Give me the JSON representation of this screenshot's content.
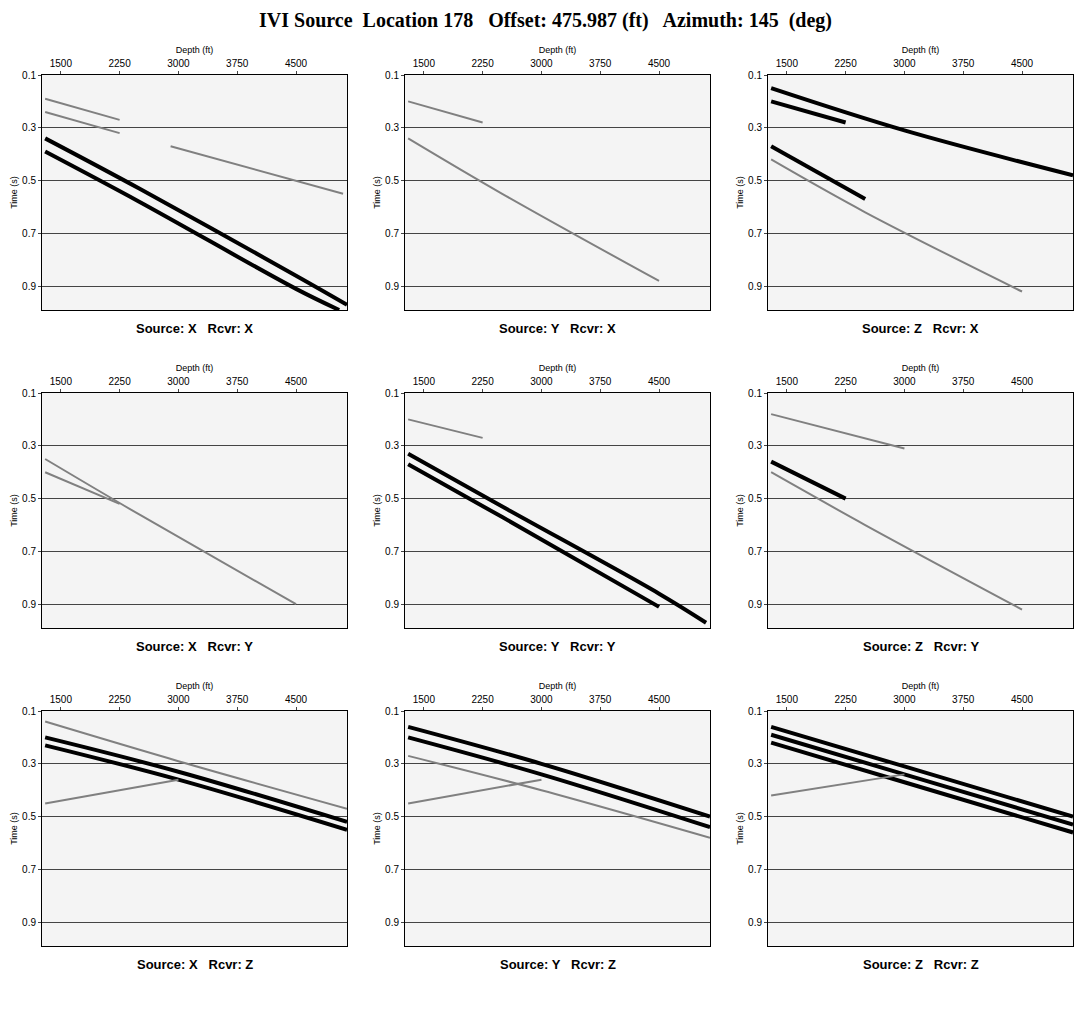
{
  "title": "IVI Source  Location 178   Offset: 475.987 (ft)   Azimuth: 145  (deg)",
  "chart_data": [
    {
      "type": "line",
      "title": "Source: X   Rcvr: X",
      "x_label": "Depth (ft)",
      "y_label": "Time (s)",
      "xlim": [
        1260,
        5150
      ],
      "ylim": [
        0.99,
        0.1
      ],
      "xticks": [
        1500,
        2250,
        3000,
        3750,
        4500
      ],
      "yticks": [
        0.1,
        0.3,
        0.5,
        0.7,
        0.9
      ],
      "grid": true,
      "tick_labels": true,
      "series": [
        {
          "color": "#000000",
          "x": [
            1300,
            2500,
            4500,
            5150
          ],
          "values": [
            0.34,
            0.53,
            0.86,
            0.97
          ]
        },
        {
          "color": "#000000",
          "x": [
            1300,
            2500,
            4500,
            5050
          ],
          "values": [
            0.39,
            0.58,
            0.91,
            0.99
          ]
        },
        {
          "color": "#808080",
          "x": [
            1300,
            2250
          ],
          "values": [
            0.19,
            0.27
          ]
        },
        {
          "color": "#808080",
          "x": [
            1300,
            2250
          ],
          "values": [
            0.24,
            0.32
          ]
        },
        {
          "color": "#808080",
          "x": [
            2900,
            5100
          ],
          "values": [
            0.37,
            0.55
          ]
        }
      ]
    },
    {
      "type": "line",
      "title": "Source: Y   Rcvr: X",
      "x_label": "Depth (ft)",
      "y_label": "Time (s)",
      "xlim": [
        1260,
        5150
      ],
      "ylim": [
        0.99,
        0.1
      ],
      "xticks": [
        1500,
        2250,
        3000,
        3750,
        4500
      ],
      "yticks": [
        0.1,
        0.3,
        0.5,
        0.7,
        0.9
      ],
      "grid": true,
      "tick_labels": true,
      "series": [
        {
          "color": "#808080",
          "x": [
            1300,
            2500,
            4500
          ],
          "values": [
            0.34,
            0.55,
            0.88
          ]
        },
        {
          "color": "#808080",
          "x": [
            1300,
            2250
          ],
          "values": [
            0.2,
            0.28
          ]
        }
      ]
    },
    {
      "type": "line",
      "title": "Source: Z   Rcvr: X",
      "x_label": "Depth (ft)",
      "y_label": "Time (s)",
      "xlim": [
        1260,
        5150
      ],
      "ylim": [
        0.99,
        0.1
      ],
      "xticks": [
        1500,
        2250,
        3000,
        3750,
        4500
      ],
      "yticks": [
        0.1,
        0.3,
        0.5,
        0.7,
        0.9
      ],
      "grid": true,
      "tick_labels": true,
      "series": [
        {
          "color": "#000000",
          "x": [
            1300,
            3000,
            5150
          ],
          "values": [
            0.15,
            0.31,
            0.48
          ]
        },
        {
          "color": "#000000",
          "x": [
            1300,
            2250
          ],
          "values": [
            0.2,
            0.28
          ]
        },
        {
          "color": "#000000",
          "x": [
            1300,
            2500
          ],
          "values": [
            0.37,
            0.57
          ]
        },
        {
          "color": "#808080",
          "x": [
            1300,
            2500,
            4500
          ],
          "values": [
            0.42,
            0.62,
            0.92
          ]
        }
      ]
    },
    {
      "type": "line",
      "title": "Source: X   Rcvr: Y",
      "x_label": "Depth (ft)",
      "y_label": "Time (s)",
      "xlim": [
        1260,
        5150
      ],
      "ylim": [
        0.99,
        0.1
      ],
      "xticks": [
        1500,
        2250,
        3000,
        3750,
        4500
      ],
      "yticks": [
        0.1,
        0.3,
        0.5,
        0.7,
        0.9
      ],
      "grid": true,
      "tick_labels": true,
      "series": [
        {
          "color": "#808080",
          "x": [
            1300,
            2500,
            4500
          ],
          "values": [
            0.35,
            0.56,
            0.9
          ]
        },
        {
          "color": "#808080",
          "x": [
            1300,
            2250
          ],
          "values": [
            0.4,
            0.52
          ]
        }
      ]
    },
    {
      "type": "line",
      "title": "Source: Y   Rcvr: Y",
      "x_label": "Depth (ft)",
      "y_label": "Time (s)",
      "xlim": [
        1260,
        5150
      ],
      "ylim": [
        0.99,
        0.1
      ],
      "xticks": [
        1500,
        2250,
        3000,
        3750,
        4500
      ],
      "yticks": [
        0.1,
        0.3,
        0.5,
        0.7,
        0.9
      ],
      "grid": true,
      "tick_labels": true,
      "series": [
        {
          "color": "#000000",
          "x": [
            1300,
            2500,
            4500,
            5100
          ],
          "values": [
            0.33,
            0.53,
            0.86,
            0.97
          ]
        },
        {
          "color": "#000000",
          "x": [
            1300,
            2500,
            4500
          ],
          "values": [
            0.37,
            0.57,
            0.91
          ]
        },
        {
          "color": "#808080",
          "x": [
            1300,
            2250
          ],
          "values": [
            0.2,
            0.27
          ]
        }
      ]
    },
    {
      "type": "line",
      "title": "Source: Z   Rcvr: Y",
      "x_label": "Depth (ft)",
      "y_label": "Time (s)",
      "xlim": [
        1260,
        5150
      ],
      "ylim": [
        0.99,
        0.1
      ],
      "xticks": [
        1500,
        2250,
        3000,
        3750,
        4500
      ],
      "yticks": [
        0.1,
        0.3,
        0.5,
        0.7,
        0.9
      ],
      "grid": true,
      "tick_labels": true,
      "series": [
        {
          "color": "#000000",
          "x": [
            1300,
            2250
          ],
          "values": [
            0.36,
            0.5
          ]
        },
        {
          "color": "#808080",
          "x": [
            1300,
            2500,
            4500
          ],
          "values": [
            0.4,
            0.6,
            0.92
          ]
        },
        {
          "color": "#808080",
          "x": [
            1300,
            3000
          ],
          "values": [
            0.18,
            0.31
          ]
        }
      ]
    },
    {
      "type": "line",
      "title": "Source: X   Rcvr: Z",
      "x_label": "Depth (ft)",
      "y_label": "Time (s)",
      "xlim": [
        1260,
        5150
      ],
      "ylim": [
        0.99,
        0.1
      ],
      "xticks": [
        1500,
        2250,
        3000,
        3750,
        4500
      ],
      "yticks": [
        0.1,
        0.3,
        0.5,
        0.7,
        0.9
      ],
      "grid": true,
      "tick_labels": true,
      "series": [
        {
          "color": "#000000",
          "x": [
            1300,
            3000,
            5150
          ],
          "values": [
            0.2,
            0.33,
            0.52
          ]
        },
        {
          "color": "#000000",
          "x": [
            1300,
            3000,
            5150
          ],
          "values": [
            0.23,
            0.36,
            0.55
          ]
        },
        {
          "color": "#808080",
          "x": [
            1300,
            3000,
            5150
          ],
          "values": [
            0.14,
            0.29,
            0.47
          ]
        },
        {
          "color": "#808080",
          "x": [
            1300,
            3000
          ],
          "values": [
            0.45,
            0.36
          ]
        }
      ]
    },
    {
      "type": "line",
      "title": "Source: Y   Rcvr: Z",
      "x_label": "Depth (ft)",
      "y_label": "Time (s)",
      "xlim": [
        1260,
        5150
      ],
      "ylim": [
        0.99,
        0.1
      ],
      "xticks": [
        1500,
        2250,
        3000,
        3750,
        4500
      ],
      "yticks": [
        0.1,
        0.3,
        0.5,
        0.7,
        0.9
      ],
      "grid": true,
      "tick_labels": true,
      "series": [
        {
          "color": "#000000",
          "x": [
            1300,
            3000,
            5150
          ],
          "values": [
            0.16,
            0.3,
            0.5
          ]
        },
        {
          "color": "#000000",
          "x": [
            1300,
            3000,
            5150
          ],
          "values": [
            0.2,
            0.34,
            0.54
          ]
        },
        {
          "color": "#808080",
          "x": [
            1300,
            3000,
            5150
          ],
          "values": [
            0.27,
            0.4,
            0.58
          ]
        },
        {
          "color": "#808080",
          "x": [
            1300,
            3000
          ],
          "values": [
            0.45,
            0.36
          ]
        }
      ]
    },
    {
      "type": "line",
      "title": "Source: Z   Rcvr: Z",
      "x_label": "Depth (ft)",
      "y_label": "Time (s)",
      "xlim": [
        1260,
        5150
      ],
      "ylim": [
        0.99,
        0.1
      ],
      "xticks": [
        1500,
        2250,
        3000,
        3750,
        4500
      ],
      "yticks": [
        0.1,
        0.3,
        0.5,
        0.7,
        0.9
      ],
      "grid": true,
      "tick_labels": true,
      "series": [
        {
          "color": "#000000",
          "x": [
            1300,
            3000,
            5150
          ],
          "values": [
            0.16,
            0.31,
            0.5
          ]
        },
        {
          "color": "#000000",
          "x": [
            1300,
            3000,
            5150
          ],
          "values": [
            0.19,
            0.34,
            0.53
          ]
        },
        {
          "color": "#000000",
          "x": [
            1300,
            3000,
            5150
          ],
          "values": [
            0.22,
            0.37,
            0.56
          ]
        },
        {
          "color": "#808080",
          "x": [
            1300,
            3000
          ],
          "values": [
            0.42,
            0.34
          ]
        }
      ]
    }
  ]
}
